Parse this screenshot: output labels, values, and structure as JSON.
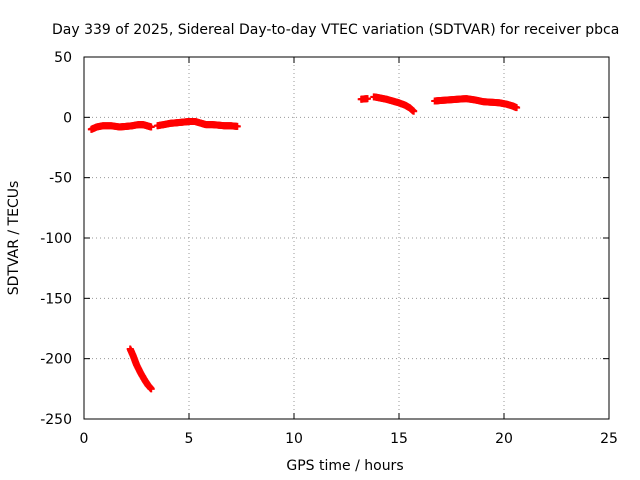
{
  "chart_data": {
    "type": "scatter",
    "title": "Day 339 of 2025, Sidereal Day-to-day VTEC variation (SDTVAR) for receiver pbca",
    "xlabel": "GPS time / hours",
    "ylabel": "SDTVAR / TECUs",
    "xlim": [
      0,
      25
    ],
    "ylim": [
      -250,
      50
    ],
    "xticks": [
      0,
      5,
      10,
      15,
      20,
      25
    ],
    "yticks": [
      -250,
      -200,
      -150,
      -100,
      -50,
      0,
      50
    ],
    "xtick_labels": [
      "0",
      "5",
      "10",
      "15",
      "20",
      "25"
    ],
    "ytick_labels": [
      "-250",
      "-200",
      "-150",
      "-100",
      "-50",
      "0",
      "50"
    ],
    "grid": true,
    "marker_color": "#ff0000",
    "segments": [
      {
        "points": [
          [
            0.35,
            -10
          ],
          [
            0.6,
            -8
          ],
          [
            0.9,
            -7
          ],
          [
            1.3,
            -7
          ],
          [
            1.7,
            -8
          ],
          [
            2.0,
            -7.5
          ],
          [
            2.3,
            -7
          ],
          [
            2.6,
            -6
          ],
          [
            2.8,
            -6
          ],
          [
            3.0,
            -7
          ],
          [
            3.2,
            -8
          ]
        ]
      },
      {
        "points": [
          [
            2.2,
            -192
          ],
          [
            2.35,
            -198
          ],
          [
            2.5,
            -205
          ],
          [
            2.7,
            -212
          ],
          [
            2.9,
            -218
          ],
          [
            3.05,
            -222
          ],
          [
            3.2,
            -225
          ]
        ]
      },
      {
        "points": [
          [
            3.5,
            -7
          ],
          [
            3.8,
            -6
          ],
          [
            4.1,
            -5
          ],
          [
            4.4,
            -4.5
          ],
          [
            4.7,
            -4
          ],
          [
            5.0,
            -3.5
          ],
          [
            5.3,
            -3.5
          ],
          [
            5.6,
            -5
          ],
          [
            5.8,
            -6
          ],
          [
            6.1,
            -6
          ],
          [
            6.4,
            -6.5
          ],
          [
            6.7,
            -7
          ],
          [
            7.0,
            -7
          ],
          [
            7.3,
            -7.5
          ]
        ]
      },
      {
        "points": [
          [
            13.2,
            15
          ],
          [
            13.5,
            15.5
          ]
        ]
      },
      {
        "points": [
          [
            13.8,
            17
          ],
          [
            14.1,
            16
          ],
          [
            14.4,
            15
          ],
          [
            14.7,
            13.5
          ],
          [
            15.0,
            12
          ],
          [
            15.3,
            10
          ],
          [
            15.5,
            8
          ],
          [
            15.7,
            5
          ]
        ]
      },
      {
        "points": [
          [
            16.7,
            13.5
          ],
          [
            17.0,
            14
          ],
          [
            17.4,
            14.5
          ],
          [
            17.8,
            15
          ],
          [
            18.2,
            15.5
          ],
          [
            18.6,
            14.5
          ],
          [
            19.0,
            13
          ],
          [
            19.4,
            12.5
          ],
          [
            19.8,
            12
          ],
          [
            20.1,
            11
          ],
          [
            20.4,
            9.5
          ],
          [
            20.6,
            8
          ]
        ]
      }
    ]
  }
}
